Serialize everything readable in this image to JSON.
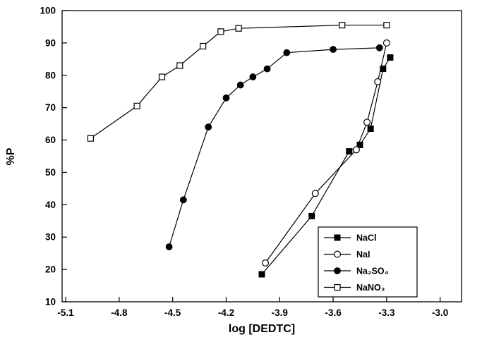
{
  "chart_data": {
    "type": "line",
    "title": "",
    "xlabel": "log [DEDTC]",
    "ylabel": "%P",
    "xlim": [
      -5.12,
      -2.88
    ],
    "ylim": [
      10,
      100
    ],
    "grid": false,
    "legend_position": "bottom-right",
    "xticks": [
      -5.1,
      -4.8,
      -4.5,
      -4.2,
      -3.9,
      -3.6,
      -3.3,
      -3.0
    ],
    "xtick_labels": [
      "-5.1",
      "-4.8",
      "-4.5",
      "-4.2",
      "-3.9",
      "-3.6",
      "-3.3",
      "-3.0"
    ],
    "yticks": [
      10,
      20,
      30,
      40,
      50,
      60,
      70,
      80,
      90,
      100
    ],
    "ytick_labels": [
      "10",
      "20",
      "30",
      "40",
      "50",
      "60",
      "70",
      "80",
      "90",
      "100"
    ],
    "series": [
      {
        "name": "NaCl",
        "marker": "filled-square",
        "color": "#000000",
        "x": [
          -4.0,
          -3.72,
          -3.51,
          -3.45,
          -3.39,
          -3.32,
          -3.28
        ],
        "y": [
          18.5,
          36.5,
          56.5,
          58.5,
          63.5,
          82.0,
          85.5
        ]
      },
      {
        "name": "NaI",
        "marker": "open-circle",
        "color": "#000000",
        "x": [
          -3.98,
          -3.7,
          -3.47,
          -3.41,
          -3.35,
          -3.3
        ],
        "y": [
          22.0,
          43.5,
          57.0,
          65.5,
          78.0,
          90.0
        ]
      },
      {
        "name": "Na₂SO₄",
        "marker": "filled-circle",
        "color": "#000000",
        "x": [
          -4.52,
          -4.44,
          -4.3,
          -4.2,
          -4.12,
          -4.05,
          -3.97,
          -3.86,
          -3.6,
          -3.34
        ],
        "y": [
          27.0,
          41.5,
          64.0,
          73.0,
          77.0,
          79.5,
          82.0,
          87.0,
          88.0,
          88.5
        ]
      },
      {
        "name": "NaNO₃",
        "marker": "open-square",
        "color": "#000000",
        "x": [
          -4.96,
          -4.7,
          -4.56,
          -4.46,
          -4.33,
          -4.23,
          -4.13,
          -3.55,
          -3.3
        ],
        "y": [
          60.5,
          70.5,
          79.5,
          83.0,
          89.0,
          93.5,
          94.5,
          95.5,
          95.5
        ]
      }
    ]
  }
}
